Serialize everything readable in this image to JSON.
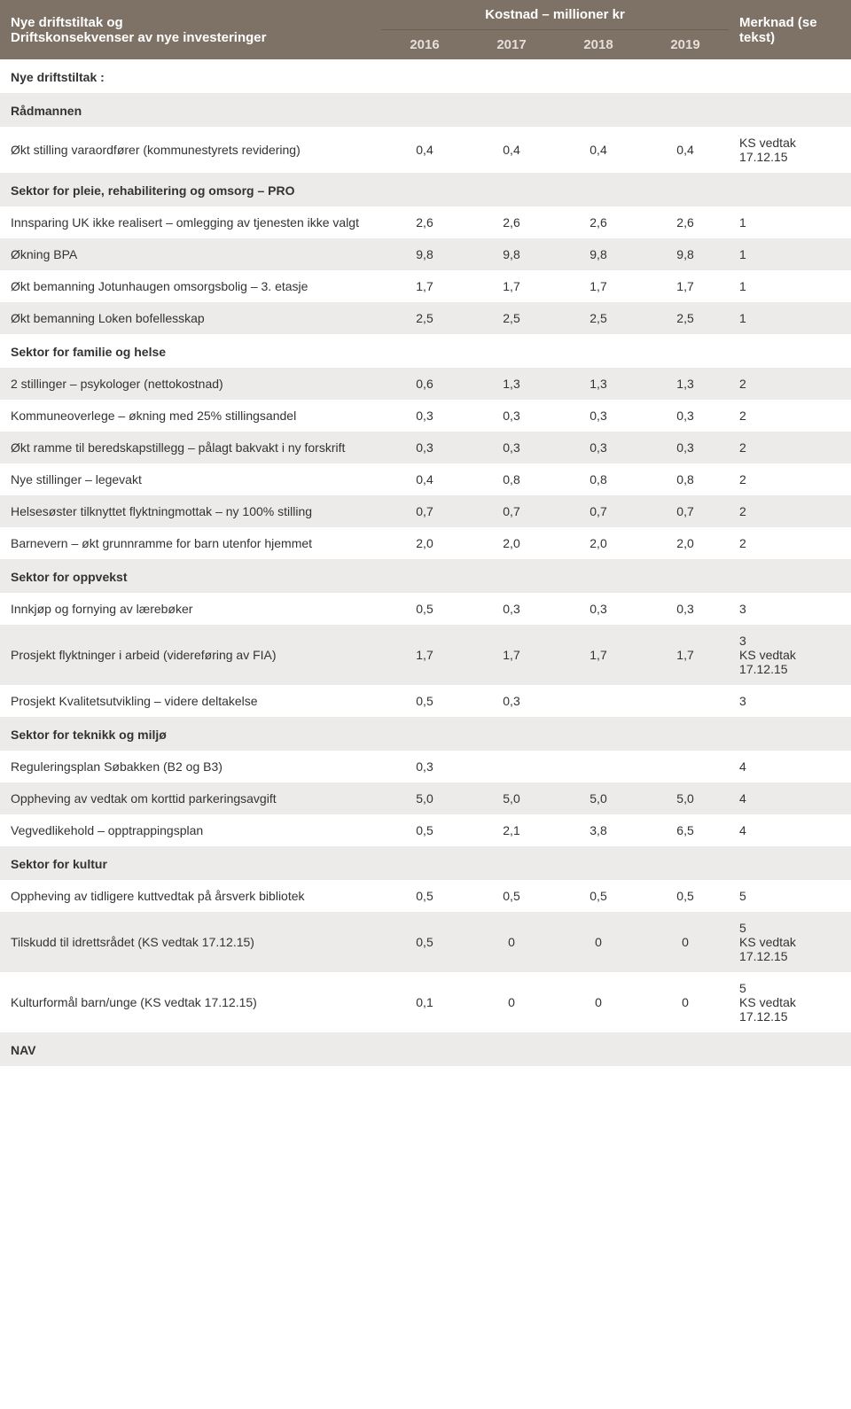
{
  "header": {
    "title_line1": "Nye driftstiltak og",
    "title_line2": "Driftskonsekvenser av nye investeringer",
    "kostnad_group": "Kostnad – millioner kr",
    "years": [
      "2016",
      "2017",
      "2018",
      "2019"
    ],
    "note_line1": "Merknad (se",
    "note_line2": "tekst)"
  },
  "rows": [
    {
      "type": "section",
      "label": "Nye driftstiltak :",
      "alt": false
    },
    {
      "type": "section",
      "label": "Rådmannen",
      "alt": true
    },
    {
      "type": "data",
      "label": "Økt stilling varaordfører (kommunestyrets revidering)",
      "vals": [
        "0,4",
        "0,4",
        "0,4",
        "0,4"
      ],
      "note": "KS vedtak 17.12.15",
      "alt": false
    },
    {
      "type": "section",
      "label": "Sektor for pleie, rehabilitering og omsorg – PRO",
      "alt": true
    },
    {
      "type": "data",
      "label": "Innsparing UK ikke realisert – omlegging av tjenesten ikke valgt",
      "vals": [
        "2,6",
        "2,6",
        "2,6",
        "2,6"
      ],
      "note": "1",
      "alt": false
    },
    {
      "type": "data",
      "label": "Økning BPA",
      "vals": [
        "9,8",
        "9,8",
        "9,8",
        "9,8"
      ],
      "note": "1",
      "alt": true
    },
    {
      "type": "data",
      "label": "Økt bemanning Jotunhaugen omsorgsbolig – 3. etasje",
      "vals": [
        "1,7",
        "1,7",
        "1,7",
        "1,7"
      ],
      "note": "1",
      "alt": false
    },
    {
      "type": "data",
      "label": "Økt bemanning Loken bofellesskap",
      "vals": [
        "2,5",
        "2,5",
        "2,5",
        "2,5"
      ],
      "note": "1",
      "alt": true
    },
    {
      "type": "section",
      "label": "Sektor for familie og helse",
      "alt": false
    },
    {
      "type": "data",
      "label": "2 stillinger – psykologer (nettokostnad)",
      "vals": [
        "0,6",
        "1,3",
        "1,3",
        "1,3"
      ],
      "note": "2",
      "alt": true
    },
    {
      "type": "data",
      "label": "Kommuneoverlege – økning med 25% stillingsandel",
      "vals": [
        "0,3",
        "0,3",
        "0,3",
        "0,3"
      ],
      "note": "2",
      "alt": false
    },
    {
      "type": "data",
      "label": "Økt ramme til beredskapstillegg – pålagt bakvakt i ny forskrift",
      "vals": [
        "0,3",
        "0,3",
        "0,3",
        "0,3"
      ],
      "note": "2",
      "alt": true
    },
    {
      "type": "data",
      "label": "Nye stillinger – legevakt",
      "vals": [
        "0,4",
        "0,8",
        "0,8",
        "0,8"
      ],
      "note": "2",
      "alt": false
    },
    {
      "type": "data",
      "label": "Helsesøster tilknyttet flyktningmottak – ny 100% stilling",
      "vals": [
        "0,7",
        "0,7",
        "0,7",
        "0,7"
      ],
      "note": "2",
      "alt": true
    },
    {
      "type": "data",
      "label": "Barnevern – økt grunnramme for barn utenfor hjemmet",
      "vals": [
        "2,0",
        "2,0",
        "2,0",
        "2,0"
      ],
      "note": "2",
      "alt": false
    },
    {
      "type": "section",
      "label": "Sektor for oppvekst",
      "alt": true
    },
    {
      "type": "data",
      "label": "Innkjøp og fornying av lærebøker",
      "vals": [
        "0,5",
        "0,3",
        "0,3",
        "0,3"
      ],
      "note": "3",
      "alt": false
    },
    {
      "type": "data",
      "label": "Prosjekt flyktninger i arbeid (videreføring av FIA)",
      "vals": [
        "1,7",
        "1,7",
        "1,7",
        "1,7"
      ],
      "note": "3\nKS vedtak 17.12.15",
      "alt": true
    },
    {
      "type": "data",
      "label": "Prosjekt Kvalitetsutvikling – videre deltakelse",
      "vals": [
        "0,5",
        "0,3",
        "",
        ""
      ],
      "note": "3",
      "alt": false
    },
    {
      "type": "section",
      "label": "Sektor for teknikk og miljø",
      "alt": true
    },
    {
      "type": "data",
      "label": "Reguleringsplan Søbakken (B2 og B3)",
      "vals": [
        "0,3",
        "",
        "",
        ""
      ],
      "note": "4",
      "alt": false
    },
    {
      "type": "data",
      "label": "Oppheving av vedtak om korttid parkeringsavgift",
      "vals": [
        "5,0",
        "5,0",
        "5,0",
        "5,0"
      ],
      "note": "4",
      "alt": true
    },
    {
      "type": "data",
      "label": "Vegvedlikehold – opptrappingsplan",
      "vals": [
        "0,5",
        "2,1",
        "3,8",
        "6,5"
      ],
      "note": "4",
      "alt": false
    },
    {
      "type": "section",
      "label": "Sektor for kultur",
      "alt": true
    },
    {
      "type": "data",
      "label": "Oppheving av tidligere kuttvedtak på årsverk bibliotek",
      "vals": [
        "0,5",
        "0,5",
        "0,5",
        "0,5"
      ],
      "note": "5",
      "alt": false
    },
    {
      "type": "data",
      "label": "Tilskudd til idrettsrådet (KS vedtak 17.12.15)",
      "vals": [
        "0,5",
        "0",
        "0",
        "0"
      ],
      "note": "5\nKS vedtak 17.12.15",
      "alt": true
    },
    {
      "type": "data",
      "label": "Kulturformål barn/unge (KS vedtak 17.12.15)",
      "vals": [
        "0,1",
        "0",
        "0",
        "0"
      ],
      "note": "5\nKS vedtak 17.12.15",
      "alt": false
    },
    {
      "type": "section",
      "label": "NAV",
      "alt": true
    }
  ]
}
